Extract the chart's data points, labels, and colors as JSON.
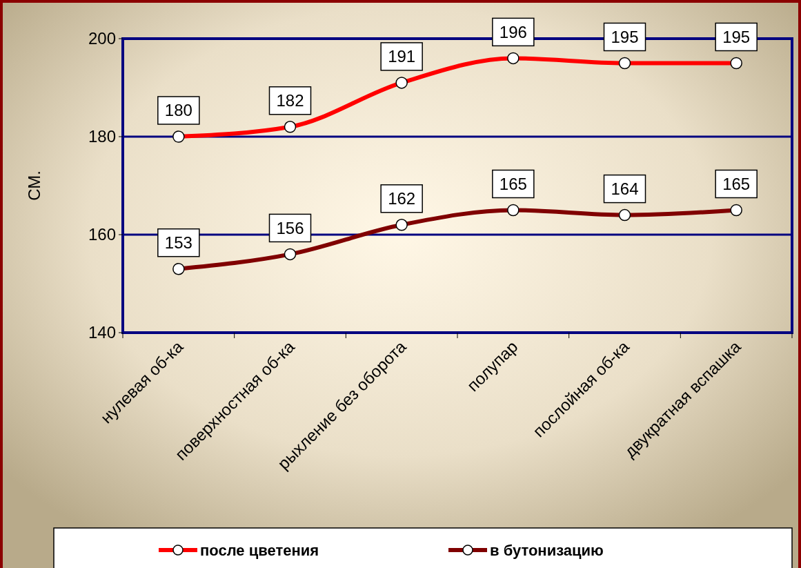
{
  "chart_data": {
    "type": "line",
    "ylabel": "СМ.",
    "categories": [
      "нулевая об-ка",
      "поверхностная об-ка",
      "рыхление без оборота",
      "полупар",
      "послойная об-ка",
      "двукратная вспашка"
    ],
    "series": [
      {
        "name": "после цветения",
        "color": "#ff0000",
        "values": [
          180,
          182,
          191,
          196,
          195,
          195
        ]
      },
      {
        "name": "в бутонизацию",
        "color": "#800000",
        "values": [
          153,
          156,
          162,
          165,
          164,
          165
        ]
      }
    ],
    "ylim": [
      140,
      200
    ],
    "yticks": [
      140,
      160,
      180,
      200
    ],
    "grid": "y",
    "legend": "bottom",
    "marker": "circle",
    "data_labels": true
  }
}
